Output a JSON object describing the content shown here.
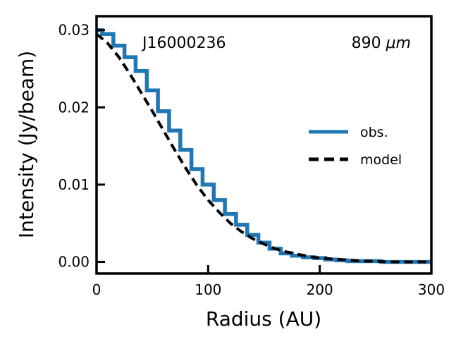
{
  "chart_data": {
    "type": "line",
    "xlabel": "Radius (AU)",
    "ylabel": "Intensity (Jy/beam)",
    "xlim": [
      0,
      300
    ],
    "ylim": [
      -0.0015,
      0.0318
    ],
    "xticks": [
      0,
      100,
      200,
      300
    ],
    "xtick_labels": [
      "0",
      "100",
      "200",
      "300"
    ],
    "yticks": [
      0.0,
      0.01,
      0.02,
      0.03
    ],
    "ytick_labels": [
      "0.00",
      "0.01",
      "0.02",
      "0.03"
    ],
    "annotations": {
      "source": "J16000236",
      "wavelength_prefix": "890 ",
      "wavelength_unit": "μm"
    },
    "grid": false,
    "legend_position": "center-right",
    "series": [
      {
        "name": "obs.",
        "style": "steps",
        "color": "#1f77b4",
        "x": [
          0,
          10,
          20,
          30,
          40,
          50,
          60,
          70,
          80,
          90,
          100,
          110,
          120,
          130,
          140,
          150,
          160,
          170,
          180,
          190,
          200,
          210,
          220,
          230,
          240,
          250,
          260,
          270,
          280,
          290,
          300
        ],
        "y": [
          0.03,
          0.0295,
          0.028,
          0.0265,
          0.0247,
          0.0222,
          0.0195,
          0.017,
          0.0145,
          0.012,
          0.01,
          0.008,
          0.0062,
          0.0048,
          0.0035,
          0.0025,
          0.0017,
          0.0011,
          0.0008,
          0.0006,
          0.0005,
          0.0003,
          0.0002,
          0.0001,
          0.0001,
          0.0001,
          0.0,
          0.0,
          0.0,
          0.0,
          0.0
        ]
      },
      {
        "name": "model",
        "style": "dashed",
        "color": "#000000",
        "x": [
          0,
          10,
          20,
          30,
          40,
          50,
          60,
          70,
          80,
          90,
          100,
          110,
          120,
          130,
          140,
          150,
          160,
          170,
          180,
          190,
          200,
          210,
          220,
          230,
          240,
          250,
          260,
          270,
          280,
          290,
          300
        ],
        "y": [
          0.0295,
          0.0283,
          0.0265,
          0.0243,
          0.0219,
          0.0195,
          0.017,
          0.0145,
          0.0121,
          0.0099,
          0.008,
          0.0064,
          0.005,
          0.0039,
          0.003,
          0.0023,
          0.0017,
          0.0013,
          0.001,
          0.0007,
          0.0005,
          0.0004,
          0.0003,
          0.0002,
          0.0001,
          0.0001,
          0.0,
          0.0,
          0.0,
          0.0,
          0.0
        ]
      }
    ]
  }
}
